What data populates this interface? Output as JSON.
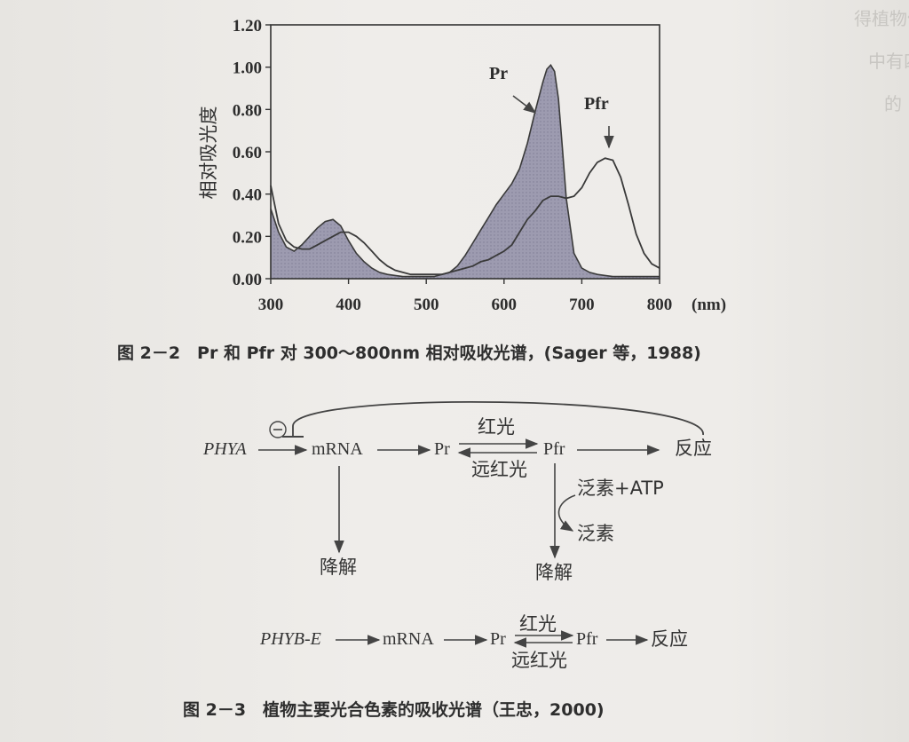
{
  "chart_data": {
    "type": "line",
    "ylabel": "相对吸光度",
    "x_unit": "(nm)",
    "xlim": [
      300,
      800
    ],
    "ylim": [
      0,
      1.2
    ],
    "x_ticks": [
      "300",
      "400",
      "500",
      "600",
      "700",
      "800"
    ],
    "y_ticks": [
      "0.00",
      "0.20",
      "0.40",
      "0.60",
      "0.80",
      "1.00",
      "1.20"
    ],
    "series": [
      {
        "name": "Pr",
        "fill": "shaded",
        "x": [
          300,
          310,
          320,
          330,
          340,
          350,
          360,
          370,
          380,
          390,
          400,
          410,
          420,
          430,
          440,
          450,
          460,
          470,
          480,
          490,
          500,
          510,
          520,
          530,
          540,
          550,
          560,
          570,
          580,
          590,
          600,
          610,
          620,
          630,
          640,
          650,
          655,
          660,
          665,
          670,
          675,
          680,
          690,
          700,
          710,
          720,
          730,
          740,
          750,
          760,
          770,
          780,
          790,
          800
        ],
        "y": [
          0.33,
          0.22,
          0.15,
          0.13,
          0.16,
          0.2,
          0.24,
          0.27,
          0.28,
          0.25,
          0.18,
          0.12,
          0.08,
          0.05,
          0.03,
          0.02,
          0.015,
          0.01,
          0.01,
          0.01,
          0.01,
          0.01,
          0.02,
          0.03,
          0.06,
          0.11,
          0.17,
          0.23,
          0.29,
          0.35,
          0.4,
          0.45,
          0.52,
          0.64,
          0.79,
          0.93,
          0.99,
          1.01,
          0.98,
          0.85,
          0.62,
          0.38,
          0.12,
          0.05,
          0.03,
          0.02,
          0.015,
          0.01,
          0.01,
          0.01,
          0.01,
          0.01,
          0.01,
          0.01
        ]
      },
      {
        "name": "Pfr",
        "fill": "none",
        "x": [
          300,
          310,
          320,
          330,
          340,
          350,
          360,
          370,
          380,
          390,
          400,
          410,
          420,
          430,
          440,
          450,
          460,
          470,
          480,
          490,
          500,
          510,
          520,
          530,
          540,
          550,
          560,
          570,
          580,
          590,
          600,
          610,
          620,
          630,
          640,
          650,
          660,
          670,
          680,
          690,
          700,
          710,
          720,
          730,
          740,
          750,
          760,
          770,
          780,
          790,
          800
        ],
        "y": [
          0.44,
          0.26,
          0.18,
          0.15,
          0.14,
          0.14,
          0.16,
          0.18,
          0.2,
          0.22,
          0.22,
          0.2,
          0.17,
          0.13,
          0.09,
          0.06,
          0.04,
          0.03,
          0.02,
          0.02,
          0.02,
          0.02,
          0.02,
          0.03,
          0.04,
          0.05,
          0.06,
          0.08,
          0.09,
          0.11,
          0.13,
          0.16,
          0.22,
          0.28,
          0.32,
          0.37,
          0.39,
          0.39,
          0.38,
          0.39,
          0.43,
          0.5,
          0.55,
          0.57,
          0.56,
          0.48,
          0.35,
          0.21,
          0.12,
          0.07,
          0.05
        ]
      }
    ],
    "annotations": [
      "Pr",
      "Pfr"
    ]
  },
  "captions": {
    "fig22": "图 2－2　Pr 和 Pfr 对 300～800nm 相对吸收光谱，(Sager 等，1988)",
    "fig23": "图 2－3　植物主要光合色素的吸收光谱（王忠，2000)"
  },
  "diagram_a": {
    "inhibit_symbol": "⊖",
    "gene": "PHYA",
    "mrna": "mRNA",
    "pr": "Pr",
    "pfr": "Pfr",
    "red_light": "红光",
    "far_red_light": "远红光",
    "response": "反应",
    "degrade_left": "降解",
    "ubiquitin_atp": "泛素+ATP",
    "ubiquitin": "泛素",
    "degrade_right": "降解"
  },
  "diagram_b": {
    "gene": "PHYB-E",
    "mrna": "mRNA",
    "pr": "Pr",
    "pfr": "Pfr",
    "red_light": "红光",
    "far_red_light": "远红光",
    "response": "反应"
  },
  "bleed_text": [
    "得植物体内的光",
    "中有四种",
    "的"
  ]
}
